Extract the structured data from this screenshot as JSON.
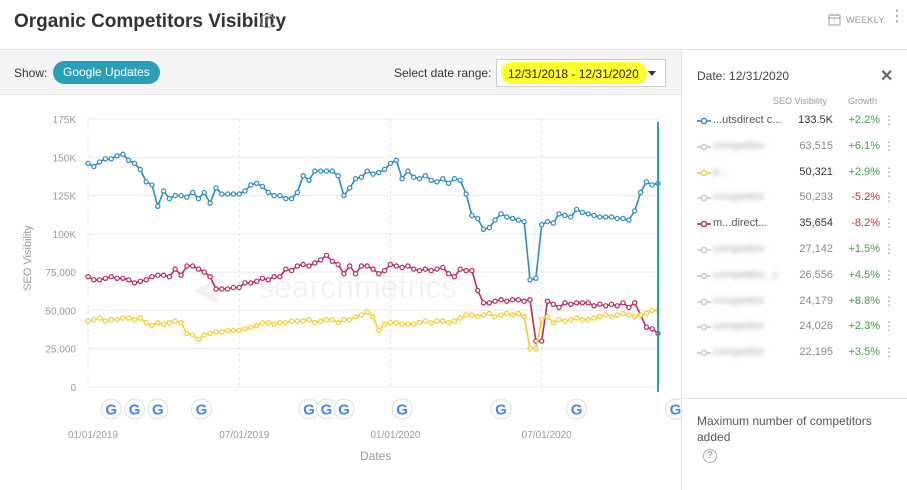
{
  "header": {
    "title": "Organic Competitors Visibility",
    "help": "?",
    "interval": "WEEKLY"
  },
  "controls": {
    "show_label": "Show:",
    "updates_button": "Google Updates",
    "date_label": "Select date range:",
    "date_range": "12/31/2018 - 12/31/2020"
  },
  "chart_data": {
    "type": "line",
    "xlabel": "Dates",
    "ylabel": "SEO Visibility",
    "ylim": [
      0,
      175000
    ],
    "yticks": [
      0,
      25000,
      50000,
      75000,
      100000,
      125000,
      150000,
      175000
    ],
    "ytick_labels": [
      "0",
      "25,000",
      "50,000",
      "75,000",
      "100K",
      "125K",
      "150K",
      "175K"
    ],
    "x_range": [
      "12/31/2018",
      "12/31/2020"
    ],
    "x_ticks": [
      "01/01/2019",
      "07/01/2019",
      "01/01/2020",
      "07/01/2020"
    ],
    "x_tick_weeks": [
      0,
      26,
      52,
      78
    ],
    "google_update_weeks": [
      4,
      8,
      12,
      19.5,
      38,
      41,
      44,
      54,
      71,
      84,
      101
    ],
    "watermark": "searchmetrics",
    "series": [
      {
        "name": "blue",
        "color": "#2b8cc4",
        "values": [
          146000,
          144000,
          147000,
          149000,
          149000,
          151000,
          152000,
          148000,
          146000,
          142000,
          134000,
          132000,
          118000,
          128000,
          123000,
          125000,
          125000,
          124000,
          127000,
          123000,
          127000,
          120000,
          130000,
          126000,
          126000,
          126000,
          126000,
          128000,
          132000,
          133000,
          131000,
          127000,
          125000,
          125000,
          123000,
          123000,
          127000,
          138000,
          135000,
          141000,
          141000,
          141000,
          141000,
          138000,
          125000,
          130000,
          136000,
          137000,
          141000,
          139000,
          140000,
          142000,
          146000,
          148000,
          136000,
          141000,
          137000,
          136000,
          138000,
          135000,
          134000,
          136000,
          133000,
          136000,
          135000,
          126000,
          112000,
          110000,
          103000,
          104000,
          109000,
          113000,
          111000,
          110000,
          109000,
          108000,
          70000,
          71000,
          106000,
          108000,
          107000,
          113000,
          112000,
          111000,
          116000,
          114000,
          113000,
          112000,
          111000,
          111000,
          111000,
          110000,
          110000,
          109000,
          115000,
          127000,
          134000,
          132000,
          133000
        ]
      },
      {
        "name": "magenta",
        "color": "#b8296a",
        "values": [
          72000,
          70000,
          70000,
          71000,
          72000,
          71000,
          71000,
          70000,
          68000,
          69000,
          70000,
          72000,
          73000,
          73000,
          72000,
          77000,
          73000,
          79000,
          79000,
          77000,
          75000,
          72000,
          64000,
          64000,
          64000,
          65000,
          65000,
          68000,
          68000,
          69000,
          71000,
          70000,
          72000,
          72000,
          77000,
          76000,
          79000,
          80000,
          79000,
          81000,
          83000,
          86000,
          82000,
          80000,
          74000,
          79000,
          74000,
          79000,
          79000,
          77000,
          74000,
          76000,
          80000,
          79000,
          78000,
          79000,
          77000,
          76000,
          77000,
          76000,
          77000,
          78000,
          74000,
          72000,
          77000,
          76000,
          76000,
          63000,
          55000,
          55000,
          56000,
          57000,
          56000,
          57000,
          57000,
          56000,
          57000,
          30000,
          30000,
          56000,
          54000,
          52000,
          55000,
          54000,
          55000,
          55000,
          55000,
          53000,
          54000,
          53000,
          54000,
          53000,
          55000,
          52000,
          55000,
          47000,
          39000,
          38000,
          35000
        ]
      },
      {
        "name": "yellow",
        "color": "#f0d032",
        "values": [
          43000,
          44000,
          45000,
          43000,
          44000,
          44000,
          45000,
          45000,
          44000,
          45000,
          42000,
          40000,
          42000,
          41000,
          42000,
          43000,
          42000,
          35000,
          34000,
          31000,
          34000,
          35000,
          36000,
          36000,
          37000,
          37000,
          37000,
          38000,
          39000,
          40000,
          42000,
          42000,
          41000,
          42000,
          42000,
          43000,
          43000,
          43000,
          44000,
          42000,
          43000,
          44000,
          44000,
          42000,
          44000,
          44000,
          46000,
          47000,
          49000,
          46000,
          37000,
          41000,
          42000,
          42000,
          41000,
          41000,
          41000,
          42000,
          43000,
          42000,
          43000,
          43000,
          42000,
          43000,
          45000,
          47000,
          47000,
          46000,
          47000,
          48000,
          46000,
          47000,
          48000,
          47000,
          48000,
          46000,
          25000,
          25000,
          44000,
          46000,
          42000,
          44000,
          43000,
          44000,
          45000,
          44000,
          44000,
          45000,
          46000,
          47000,
          46000,
          47000,
          48000,
          47000,
          46000,
          47000,
          48000,
          50000,
          50000
        ]
      }
    ]
  },
  "panel": {
    "date": "Date: 12/31/2020",
    "col_visibility": "SEO Visibility",
    "col_growth": "Growth",
    "rows": [
      {
        "name": "...utsdirect c...",
        "value": "133.5K",
        "growth": "+2.2%",
        "color": "#2b8cc4",
        "blurred": false,
        "positive": true,
        "active": true
      },
      {
        "name": "competitor",
        "value": "63,515",
        "growth": "+6.1%",
        "color": "#c8c8c8",
        "blurred": true,
        "positive": true,
        "active": false
      },
      {
        "name": "p...",
        "value": "50,321",
        "growth": "+2.9%",
        "color": "#f0d032",
        "blurred": true,
        "positive": true,
        "active": true
      },
      {
        "name": "competitor",
        "value": "50,233",
        "growth": "-5.2%",
        "color": "#c8c8c8",
        "blurred": true,
        "positive": false,
        "active": false
      },
      {
        "name": "m...direct...",
        "value": "35,654",
        "growth": "-8.2%",
        "color": "#b8296a",
        "blurred": false,
        "positive": false,
        "active": true
      },
      {
        "name": "competitor",
        "value": "27,142",
        "growth": "+1.5%",
        "color": "#c8c8c8",
        "blurred": true,
        "positive": true,
        "active": false
      },
      {
        "name": "competitor...c",
        "value": "26,556",
        "growth": "+4.5%",
        "color": "#c8c8c8",
        "blurred": true,
        "positive": true,
        "active": false
      },
      {
        "name": "competitor",
        "value": "24,179",
        "growth": "+8.8%",
        "color": "#c8c8c8",
        "blurred": true,
        "positive": true,
        "active": false
      },
      {
        "name": "competitor",
        "value": "24,026",
        "growth": "+2.3%",
        "color": "#c8c8c8",
        "blurred": true,
        "positive": true,
        "active": false
      },
      {
        "name": "competitor",
        "value": "22,195",
        "growth": "+3.5%",
        "color": "#c8c8c8",
        "blurred": true,
        "positive": true,
        "active": false
      }
    ],
    "max_note": "Maximum number of competitors added",
    "help": "?"
  },
  "colors": {
    "accent": "#2a9fb8",
    "highlight": "#ffff2e",
    "positive": "#43a047",
    "negative": "#d32f2f"
  }
}
